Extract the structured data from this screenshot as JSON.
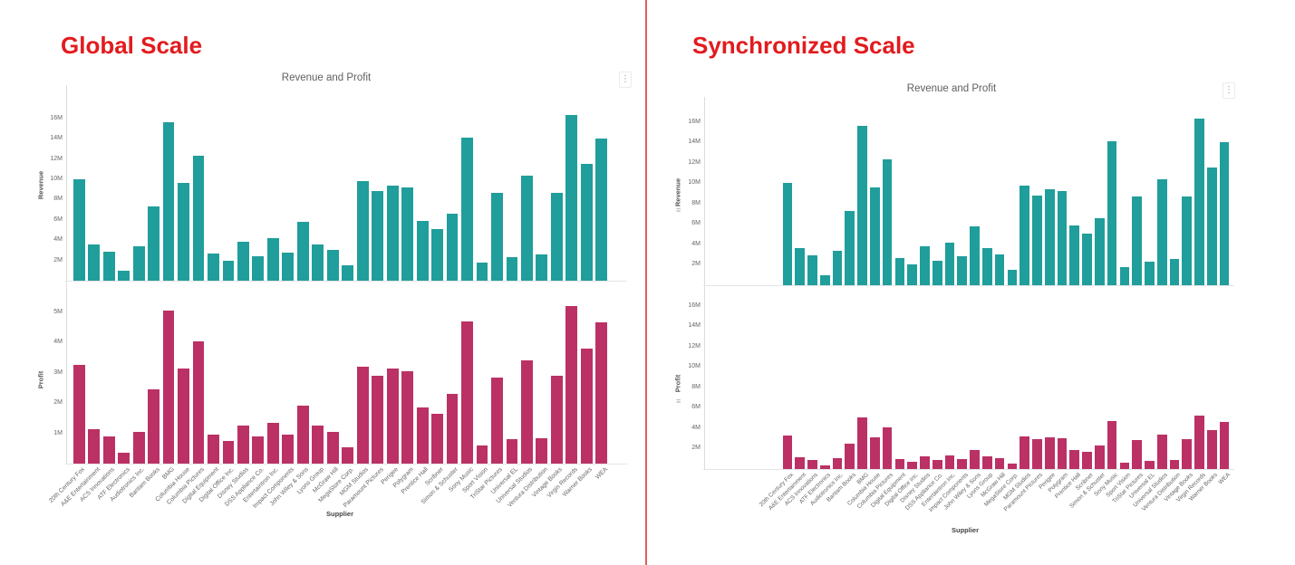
{
  "page": {
    "background": "#ffffff",
    "divider_color": "#e05e5e"
  },
  "panels": [
    {
      "heading": "Global Scale",
      "heading_color": "#e21b1e",
      "title": "Revenue and Profit",
      "xlabel": "Supplier",
      "menu_icon": "kebab-menu-icon",
      "axes": [
        {
          "series": "Revenue",
          "ylim_millions": [
            0,
            18.75
          ],
          "ticks": [
            "2M",
            "4M",
            "6M",
            "8M",
            "10M",
            "12M",
            "14M",
            "16M"
          ],
          "sync_icon": false
        },
        {
          "series": "Profit",
          "ylim_millions": [
            0,
            5.5
          ],
          "ticks": [
            "1M",
            "2M",
            "3M",
            "4M",
            "5M"
          ],
          "sync_icon": false
        }
      ]
    },
    {
      "heading": "Synchronized Scale",
      "heading_color": "#e21b1e",
      "title": "Revenue and Profit",
      "xlabel": "Supplier",
      "menu_icon": "kebab-menu-icon",
      "axes": [
        {
          "series": "Revenue",
          "ylim_millions": [
            0,
            18.2
          ],
          "ticks": [
            "2M",
            "4M",
            "6M",
            "8M",
            "10M",
            "12M",
            "14M",
            "16M"
          ],
          "sync_icon": true
        },
        {
          "series": "Profit",
          "ylim_millions": [
            0,
            16.7
          ],
          "ticks": [
            "2M",
            "4M",
            "6M",
            "8M",
            "10M",
            "12M",
            "14M",
            "16M"
          ],
          "sync_icon": true
        }
      ]
    }
  ],
  "chart_data": {
    "type": "bar",
    "title": "Revenue and Profit",
    "xlabel": "Supplier",
    "unit": "millions",
    "grid": false,
    "categories": [
      "20th Century Fox",
      "A&E Entertainment",
      "ACS Innovations",
      "ATF Electronics",
      "Audiotronics Inc.",
      "Bantam Books",
      "BMG",
      "Columbia House",
      "Columbia Pictures",
      "Digital Equipment",
      "Digital Office Inc.",
      "Disney Studios",
      "DSS Appliance Co.",
      "Entertaintron Inc.",
      "Impact Components",
      "John Wiley & Sons",
      "Lyons Group",
      "McGraw Hill",
      "MegaStore Corp.",
      "MGM Studios",
      "Paramount Pictures",
      "Perigee",
      "Polygram",
      "Prentice Hall",
      "Scribner",
      "Simon & Schuster",
      "Sony Music",
      "Sport Vision",
      "TriStar Pictures",
      "Universal EL",
      "Universal Studios",
      "Ventura Distribution",
      "Vintage Books",
      "Virgin Records",
      "Warner Books",
      "WEA"
    ],
    "series": [
      {
        "name": "Revenue",
        "color": "#209e9b",
        "values": [
          10.0,
          3.6,
          2.9,
          1.0,
          3.4,
          7.3,
          15.6,
          9.6,
          12.3,
          2.7,
          2.0,
          3.8,
          2.4,
          4.2,
          2.8,
          5.8,
          3.6,
          3.0,
          1.5,
          9.8,
          8.8,
          9.4,
          9.2,
          5.9,
          5.1,
          6.6,
          14.1,
          1.8,
          8.7,
          2.3,
          10.4,
          2.6,
          8.7,
          16.3,
          11.5,
          14.0
        ]
      },
      {
        "name": "Profit",
        "color": "#bb3165",
        "values": [
          3.25,
          1.15,
          0.9,
          0.35,
          1.05,
          2.45,
          5.05,
          3.15,
          4.05,
          0.95,
          0.75,
          1.25,
          0.9,
          1.35,
          0.95,
          1.9,
          1.25,
          1.05,
          0.55,
          3.2,
          2.9,
          3.15,
          3.05,
          1.85,
          1.65,
          2.3,
          4.7,
          0.6,
          2.85,
          0.8,
          3.4,
          0.85,
          2.9,
          5.2,
          3.8,
          4.65
        ]
      }
    ]
  }
}
